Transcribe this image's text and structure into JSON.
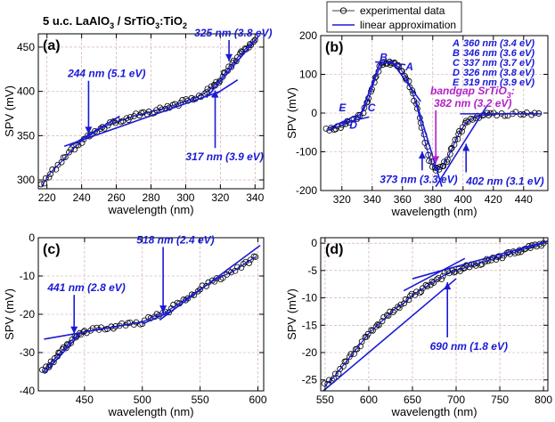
{
  "figure_title": {
    "main": "5 u.c. LaAlO",
    "sub1": "3",
    "mid": " / SrTiO",
    "sub2": "3",
    "end": ":TiO",
    "sub3": "2"
  },
  "legend": {
    "experimental": "experimental data",
    "linear": "linear approximation"
  },
  "chart_data": [
    {
      "id": "a",
      "type": "line",
      "label": "(a)",
      "xlabel": "wavelength (nm)",
      "ylabel": "SPV (mV)",
      "xlim": [
        215,
        345
      ],
      "ylim": [
        290,
        465
      ],
      "xticks": [
        220,
        240,
        260,
        280,
        300,
        320,
        340
      ],
      "yticks": [
        300,
        350,
        400,
        450
      ],
      "x": [
        217,
        222,
        228,
        234,
        240,
        246,
        252,
        258,
        264,
        270,
        276,
        282,
        288,
        294,
        300,
        306,
        312,
        316,
        320,
        324,
        328,
        332,
        336,
        340
      ],
      "y": [
        293,
        308,
        320,
        333,
        344,
        352,
        359,
        364,
        368,
        372,
        375,
        378,
        381,
        385,
        389,
        393,
        399,
        406,
        414,
        424,
        434,
        443,
        451,
        458
      ],
      "fits": [
        {
          "x": [
            233,
            262
          ],
          "y": [
            338,
            372
          ]
        },
        {
          "x": [
            230,
            320
          ],
          "y": [
            338,
            400
          ]
        },
        {
          "x": [
            312,
            342
          ],
          "y": [
            393,
            462
          ]
        },
        {
          "x": [
            315,
            330
          ],
          "y": [
            394,
            413
          ]
        }
      ],
      "annotations": [
        {
          "text": "244 nm (5.1 eV)",
          "at": [
            244,
            348
          ],
          "label_pos": [
            232,
            416
          ]
        },
        {
          "text": "325 nm (3.8 eV)",
          "at": [
            325,
            430
          ],
          "label_pos": [
            305,
            462
          ]
        },
        {
          "text": "317 nm (3.9 eV)",
          "at": [
            317,
            405
          ],
          "label_pos": [
            300,
            322
          ]
        }
      ]
    },
    {
      "id": "b",
      "type": "line",
      "label": "(b)",
      "xlabel": "wavelength (nm)",
      "ylabel": "SPV (mV)",
      "xlim": [
        306,
        456
      ],
      "ylim": [
        -200,
        200
      ],
      "xticks": [
        320,
        340,
        360,
        380,
        400,
        420,
        440
      ],
      "yticks": [
        -200,
        -100,
        0,
        100,
        200
      ],
      "x": [
        310,
        316,
        322,
        328,
        334,
        338,
        342,
        346,
        350,
        354,
        358,
        362,
        366,
        370,
        374,
        378,
        382,
        386,
        390,
        394,
        398,
        402,
        408,
        414,
        420,
        430,
        440,
        450
      ],
      "y": [
        -45,
        -38,
        -28,
        -18,
        5,
        40,
        90,
        125,
        132,
        128,
        118,
        95,
        60,
        10,
        -60,
        -120,
        -148,
        -140,
        -115,
        -80,
        -48,
        -25,
        -10,
        -5,
        -3,
        -2,
        -2,
        -1
      ],
      "fits": [
        {
          "x": [
            311,
            330
          ],
          "y": [
            -40,
            -5
          ]
        },
        {
          "x": [
            318,
            338
          ],
          "y": [
            -28,
            -10
          ]
        },
        {
          "x": [
            331,
            346
          ],
          "y": [
            -20,
            140
          ]
        },
        {
          "x": [
            342,
            362
          ],
          "y": [
            132,
            125
          ]
        },
        {
          "x": [
            352,
            372
          ],
          "y": [
            138,
            30
          ]
        },
        {
          "x": [
            369,
            386
          ],
          "y": [
            30,
            -190
          ]
        },
        {
          "x": [
            382,
            416
          ],
          "y": [
            -190,
            20
          ]
        },
        {
          "x": [
            398,
            452
          ],
          "y": [
            -2,
            -2
          ]
        }
      ],
      "letters": [
        {
          "text": "A",
          "at": [
            362,
            110
          ]
        },
        {
          "text": "B",
          "at": [
            345,
            135
          ]
        },
        {
          "text": "C",
          "at": [
            337,
            5
          ]
        },
        {
          "text": "D",
          "at": [
            325,
            -40
          ]
        },
        {
          "text": "E",
          "at": [
            318,
            5
          ]
        }
      ],
      "table": [
        {
          "key": "A",
          "value": "360 nm (3.4 eV)"
        },
        {
          "key": "B",
          "value": "346 nm (3.6 eV)"
        },
        {
          "key": "C",
          "value": "337 nm (3.7 eV)"
        },
        {
          "key": "D",
          "value": "326 nm (3.8 eV)"
        },
        {
          "key": "E",
          "value": "319 nm (3.9 eV)"
        }
      ],
      "annotations": [
        {
          "text": "373 nm (3.3 eV)",
          "at": [
            373,
            -90
          ],
          "label_pos": [
            345,
            -180
          ]
        },
        {
          "text": "402 nm (3.1 eV)",
          "at": [
            402,
            -70
          ],
          "label_pos": [
            402,
            -185
          ]
        }
      ],
      "gap_label": {
        "line1": "bandgap SrTiO",
        "sub": "3",
        "colon": ":",
        "line2": "382 nm (3.2 eV)",
        "at": [
          382,
          -130
        ]
      }
    },
    {
      "id": "c",
      "type": "line",
      "label": "(c)",
      "xlabel": "wavelength (nm)",
      "ylabel": "SPV (mV)",
      "xlim": [
        410,
        605
      ],
      "ylim": [
        -40,
        0
      ],
      "xticks": [
        450,
        500,
        550,
        600
      ],
      "yticks": [
        -40,
        -30,
        -20,
        -10,
        0
      ],
      "x": [
        414,
        420,
        426,
        432,
        438,
        444,
        450,
        460,
        470,
        480,
        490,
        500,
        510,
        520,
        530,
        540,
        550,
        560,
        570,
        580,
        590,
        598
      ],
      "y": [
        -35,
        -33,
        -31,
        -29,
        -27,
        -25.5,
        -24.5,
        -24,
        -23.5,
        -23,
        -22.5,
        -22,
        -20.5,
        -19.5,
        -17.5,
        -15.5,
        -13.5,
        -11.5,
        -10,
        -8.5,
        -6.5,
        -5
      ],
      "fits": [
        {
          "x": [
            415,
            445
          ],
          "y": [
            -35.5,
            -25.5
          ]
        },
        {
          "x": [
            415,
            500
          ],
          "y": [
            -26.5,
            -22
          ]
        },
        {
          "x": [
            500,
            527
          ],
          "y": [
            -22.5,
            -19
          ]
        },
        {
          "x": [
            515,
            602
          ],
          "y": [
            -21.5,
            -2
          ]
        }
      ],
      "annotations": [
        {
          "text": "441 nm (2.8 eV)",
          "at": [
            441,
            -26
          ],
          "label_pos": [
            418,
            -14
          ]
        },
        {
          "text": "518 nm (2.4 eV)",
          "at": [
            518,
            -20.5
          ],
          "label_pos": [
            495,
            -1.5
          ]
        }
      ]
    },
    {
      "id": "d",
      "type": "line",
      "label": "(d)",
      "xlabel": "wavelength (nm)",
      "ylabel": "SPV (mV)",
      "xlim": [
        545,
        805
      ],
      "ylim": [
        -27,
        1
      ],
      "xticks": [
        550,
        600,
        650,
        700,
        750,
        800
      ],
      "yticks": [
        -25,
        -20,
        -15,
        -10,
        -5,
        0
      ],
      "x": [
        550,
        560,
        570,
        580,
        590,
        600,
        610,
        620,
        630,
        640,
        650,
        660,
        670,
        680,
        690,
        700,
        710,
        720,
        730,
        740,
        750,
        760,
        770,
        780,
        790,
        800
      ],
      "y": [
        -26,
        -24.5,
        -22.5,
        -20.5,
        -18.5,
        -16.5,
        -15,
        -13.5,
        -12,
        -11,
        -9.5,
        -8.5,
        -7.5,
        -6.5,
        -5.5,
        -5,
        -4.5,
        -4,
        -3.5,
        -3,
        -2.5,
        -2,
        -1.5,
        -1,
        -0.5,
        0
      ],
      "fits": [
        {
          "x": [
            548,
            700
          ],
          "y": [
            -27,
            -6.5
          ]
        },
        {
          "x": [
            640,
            710
          ],
          "y": [
            -8.7,
            -2.8
          ]
        },
        {
          "x": [
            650,
            805
          ],
          "y": [
            -6.5,
            0.4
          ]
        }
      ],
      "annotations": [
        {
          "text": "690 nm (1.8 eV)",
          "at": [
            690,
            -6.5
          ],
          "label_pos": [
            670,
            -19.5
          ]
        }
      ]
    }
  ]
}
